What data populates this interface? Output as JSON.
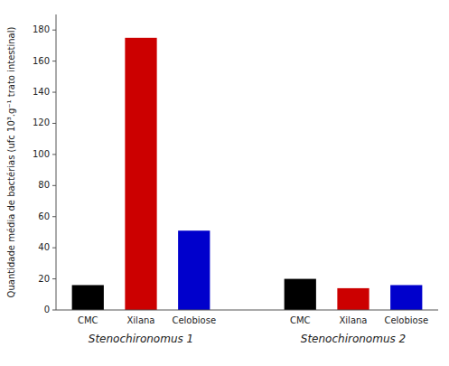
{
  "chart_data": {
    "type": "bar",
    "categories": [
      "Stenochironomus 1",
      "Stenochironomus 2"
    ],
    "series": [
      {
        "name": "CMC",
        "color": "#000000",
        "values": [
          16,
          20
        ]
      },
      {
        "name": "Xilana",
        "color": "#cc0000",
        "values": [
          175,
          14
        ]
      },
      {
        "name": "Celobiose",
        "color": "#0000cc",
        "values": [
          51,
          16
        ]
      }
    ],
    "ylabel": "Quantidade média de bactérias (ufc 10³.g⁻¹ trato intestinal)",
    "ylim": [
      0,
      190
    ],
    "yticks": [
      0,
      20,
      40,
      60,
      80,
      100,
      120,
      140,
      160,
      180
    ],
    "grid": false
  }
}
